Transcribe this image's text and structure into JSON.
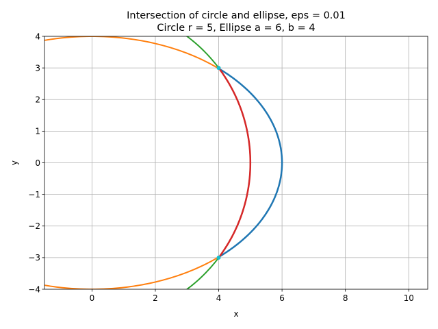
{
  "chart_data": {
    "type": "line",
    "title_line1": "Intersection of circle and ellipse, eps = 0.01",
    "title_line2": "Circle r = 5, Ellipse a = 6, b = 4",
    "xlabel": "x",
    "ylabel": "y",
    "xlim": [
      -1.5,
      10.6
    ],
    "ylim": [
      -4,
      4
    ],
    "x_ticks": [
      0,
      2,
      4,
      6,
      8,
      10
    ],
    "y_ticks": [
      -4,
      -3,
      -2,
      -1,
      0,
      1,
      2,
      3,
      4
    ],
    "x_tick_labels": [
      "0",
      "2",
      "4",
      "6",
      "8",
      "10"
    ],
    "y_tick_labels": [
      "−4",
      "−3",
      "−2",
      "−1",
      "0",
      "1",
      "2",
      "3",
      "4"
    ],
    "grid": true,
    "circle": {
      "r": 5,
      "color": "#2ca02c"
    },
    "ellipse": {
      "a": 6,
      "b": 4,
      "color": "#ff7f0e"
    },
    "circle_region": {
      "color": "#d62728"
    },
    "ellipse_region": {
      "color": "#1f77b4"
    },
    "intersections": {
      "color": "#17becf",
      "points": [
        [
          4.0,
          3.0
        ],
        [
          4.0,
          -3.0
        ]
      ]
    }
  }
}
